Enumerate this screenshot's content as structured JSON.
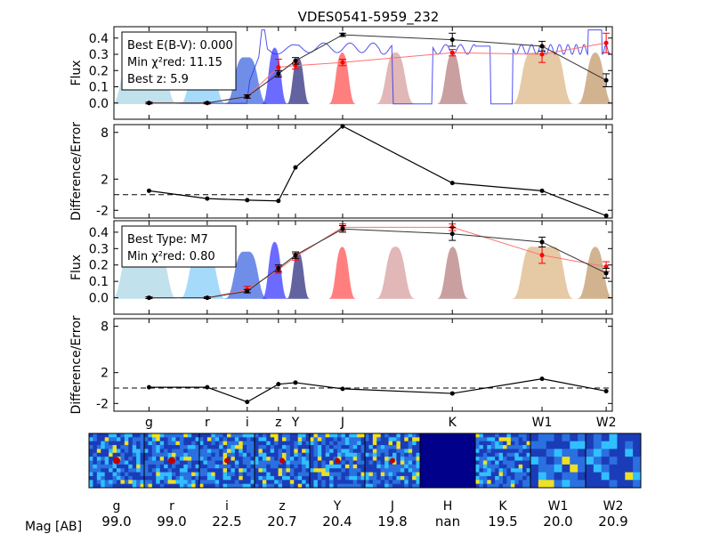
{
  "title": "VDES0541-5959_232",
  "bands": [
    "g",
    "r",
    "i",
    "z",
    "Y",
    "J",
    "K",
    "W1",
    "W2"
  ],
  "band_wavelengths": [
    0.48,
    0.64,
    0.78,
    0.91,
    0.99,
    1.25,
    2.15,
    3.35,
    4.6
  ],
  "images": {
    "labels": [
      "g",
      "r",
      "i",
      "z",
      "Y",
      "J",
      "H",
      "K",
      "W1",
      "W2"
    ],
    "mag_title": "Mag [AB]",
    "mags": [
      "99.0",
      "99.0",
      "22.5",
      "20.7",
      "20.4",
      "19.8",
      "nan",
      "19.5",
      "20.0",
      "20.9"
    ]
  },
  "colors": {
    "data": "#000000",
    "model": "#ff0000",
    "model_line": "#ff7070",
    "spectrum": "#3333ee",
    "filters": [
      "#add8e6",
      "#87cefa",
      "#4169e1",
      "#3a3aff",
      "#2f2f7f",
      "#ff5555",
      "#d8a0a0",
      "#b88080",
      "#deb887",
      "#c49a6c"
    ]
  },
  "chart_data": [
    {
      "panel": "quasar-fit",
      "type": "line",
      "ylabel": "Flux",
      "ylim": [
        -0.1,
        0.47
      ],
      "yticks": [
        "0.4",
        "0.3",
        "0.2",
        "0.1",
        "0.0"
      ],
      "legend": [
        "Best E(B-V): 0.000",
        "Min χ²red: 11.15",
        "Best z: 5.9"
      ],
      "series": [
        {
          "values": [
            0.0,
            0.0,
            0.04,
            0.18,
            0.26,
            0.42,
            0.39,
            0.35,
            0.14
          ],
          "errors": [
            0.005,
            0.005,
            0.01,
            0.02,
            0.02,
            0.01,
            0.04,
            0.03,
            0.04
          ]
        },
        {
          "values": [
            0.0,
            0.0,
            0.04,
            0.22,
            0.23,
            0.25,
            0.31,
            0.3,
            0.37
          ],
          "errors": [
            0.005,
            0.005,
            0.01,
            0.05,
            0.02,
            0.02,
            0.02,
            0.05,
            0.06
          ]
        }
      ]
    },
    {
      "panel": "quasar-residual",
      "type": "line",
      "ylabel": "Difference/Error",
      "ylim": [
        -3,
        9
      ],
      "yticks": [
        "8",
        "2",
        "-2"
      ],
      "values": [
        0.5,
        -0.5,
        -0.7,
        -0.8,
        3.5,
        8.8,
        1.5,
        0.5,
        -2.7
      ]
    },
    {
      "panel": "dwarf-fit",
      "type": "line",
      "ylabel": "Flux",
      "ylim": [
        -0.1,
        0.47
      ],
      "yticks": [
        "0.4",
        "0.3",
        "0.2",
        "0.1",
        "0.0"
      ],
      "legend": [
        "Best Type: M7",
        "Min χ²red: 0.80"
      ],
      "series": [
        {
          "values": [
            0.0,
            0.0,
            0.04,
            0.18,
            0.26,
            0.42,
            0.39,
            0.34,
            0.15
          ],
          "errors": [
            0.005,
            0.005,
            0.01,
            0.02,
            0.02,
            0.02,
            0.04,
            0.03,
            0.03
          ]
        },
        {
          "values": [
            0.0,
            0.0,
            0.05,
            0.17,
            0.25,
            0.43,
            0.43,
            0.26,
            0.19
          ],
          "errors": [
            0.005,
            0.005,
            0.02,
            0.02,
            0.02,
            0.02,
            0.02,
            0.05,
            0.03
          ]
        }
      ]
    },
    {
      "panel": "dwarf-residual",
      "type": "line",
      "ylabel": "Difference/Error",
      "ylim": [
        -3,
        9
      ],
      "yticks": [
        "8",
        "2",
        "-2"
      ],
      "values": [
        0.1,
        0.1,
        -1.8,
        0.5,
        0.7,
        -0.1,
        -0.7,
        1.2,
        -0.4
      ]
    }
  ]
}
